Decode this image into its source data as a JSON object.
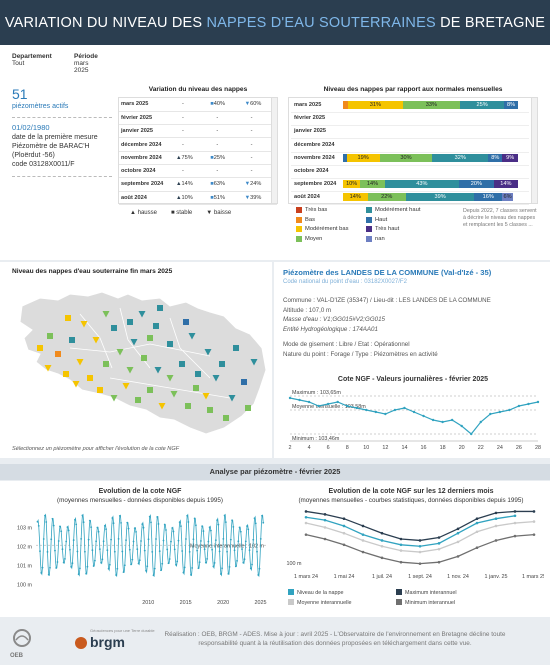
{
  "header": {
    "title_part1": "VARIATION DU NIVEAU DES ",
    "title_highlight": "NAPPES D'EAU SOUTERRAINES",
    "title_part2": " DE BRETAGNE"
  },
  "filters": {
    "dept_label": "Departement",
    "dept_value": "Tout",
    "period_label": "Période",
    "period_value": "mars 2025"
  },
  "kpi": {
    "count": "51",
    "count_label": "piézomètres actifs",
    "date": "01/02/1980",
    "date_label": "date de la première mesure",
    "piezo_name": "Piézomètre de BARAC'H",
    "piezo_place": "(Ploërdut -56)",
    "piezo_code": "code 03128X0011/F"
  },
  "variation": {
    "title": "Variation du niveau des nappes",
    "rows": [
      {
        "month": "mars 2025",
        "hausse": "-",
        "stable": "■40%",
        "baisse": "▼60%"
      },
      {
        "month": "février 2025",
        "hausse": "-",
        "stable": "-",
        "baisse": "-"
      },
      {
        "month": "janvier 2025",
        "hausse": "-",
        "stable": "-",
        "baisse": "-"
      },
      {
        "month": "décembre 2024",
        "hausse": "-",
        "stable": "-",
        "baisse": "-"
      },
      {
        "month": "novembre 2024",
        "hausse": "▲75%",
        "stable": "■25%",
        "baisse": "-"
      },
      {
        "month": "octobre 2024",
        "hausse": "-",
        "stable": "-",
        "baisse": "-"
      },
      {
        "month": "septembre 2024",
        "hausse": "▲14%",
        "stable": "■63%",
        "baisse": "▼24%"
      },
      {
        "month": "août 2024",
        "hausse": "▲10%",
        "stable": "■51%",
        "baisse": "▼39%"
      }
    ],
    "legend": {
      "hausse": "▲ hausse",
      "stable": "■ stable",
      "baisse": "▼ baisse"
    }
  },
  "normales": {
    "title": "Niveau des nappes par rapport aux normales mensuelles",
    "months": [
      "mars 2025",
      "février 2025",
      "janvier 2025",
      "décembre 2024",
      "novembre 2024",
      "octobre 2024",
      "septembre 2024",
      "août 2024"
    ],
    "legend": [
      {
        "label": "Très bas",
        "color": "#c9401e"
      },
      {
        "label": "Modérément haut",
        "color": "#2f8f9c"
      },
      {
        "label": "Bas",
        "color": "#f08a1c"
      },
      {
        "label": "Haut",
        "color": "#2f6fa8"
      },
      {
        "label": "Modérément bas",
        "color": "#f5c400"
      },
      {
        "label": "Très haut",
        "color": "#4a2e86"
      },
      {
        "label": "Moyen",
        "color": "#7cc05a"
      },
      {
        "label": "nan",
        "color": "#6d7fc2"
      }
    ],
    "note": "Depuis 2022, 7 classes servent à décrire le niveau des nappes et remplacent les 5 classes ..."
  },
  "map": {
    "title": "Niveau des nappes d'eau souterraine fin mars 2025",
    "caption": "Sélectionnez un piézomètre pour afficher l'évolution de la cote NGF"
  },
  "piezo": {
    "title": "Piézomètre des LANDES DE LA COMMUNE (Val-d'Izé - 35)",
    "code_nat": "Code national du point d'eau : 03182X0027/F2",
    "commune": "Commune : VAL-D'IZE (35347) / Lieu-dit : LES LANDES DE LA COMMUNE",
    "altitude": "Altitude : 107,0 m",
    "masse": "Masse d'eau : V1;GG015#V2;GG015",
    "entite": "Entité Hydrogéologique : 174AA01",
    "gisement": "Mode de gisement : Libre / Etat : Opérationnel",
    "nature": "Nature du point : Forage / Type : Piézomètres en activité"
  },
  "section_title": "Analyse par piézomètre - février 2025",
  "chart_data": [
    {
      "type": "line",
      "title": "Cote NGF - Valeurs journalières - février 2025",
      "x": [
        2,
        3,
        4,
        5,
        6,
        7,
        8,
        9,
        10,
        11,
        12,
        13,
        14,
        15,
        16,
        17,
        18,
        19,
        20,
        21,
        22,
        23,
        24,
        25,
        26,
        27,
        28
      ],
      "series": [
        {
          "values": [
            103.64,
            103.63,
            103.62,
            103.6,
            103.61,
            103.62,
            103.6,
            103.59,
            103.58,
            103.57,
            103.56,
            103.58,
            103.59,
            103.57,
            103.55,
            103.53,
            103.52,
            103.53,
            103.5,
            103.46,
            103.52,
            103.56,
            103.57,
            103.58,
            103.6,
            103.61,
            103.62
          ]
        }
      ],
      "xticks": [
        "2",
        "4",
        "6",
        "8",
        "10",
        "12",
        "14",
        "16",
        "18",
        "20",
        "22",
        "24",
        "26",
        "28"
      ],
      "annotations": {
        "max": "Maximum : 103,65m",
        "mean": "Moyenne mensuelle : 103,58m",
        "min": "Minimum : 103,46m"
      }
    },
    {
      "type": "line",
      "title": "Evolution de la cote NGF",
      "subtitle": "(moyennes mensuelles - données disponibles depuis 1995)",
      "x": [
        1995,
        2026
      ],
      "yticks": [
        "103 m",
        "102 m",
        "101 m",
        "100 m"
      ],
      "xticks": [
        "2010",
        "2015",
        "2020",
        "2025"
      ],
      "annotation": "Moyenne interannuelle : 102 m"
    },
    {
      "type": "line",
      "title": "Evolution de la cote NGF sur les 12 derniers mois",
      "subtitle": "(moyennes mensuelles - courbes statistiques, données disponibles depuis 1995)",
      "categories": [
        "mars 24",
        "avr. 24",
        "mai 24",
        "juin 24",
        "juil. 24",
        "août 24",
        "sept. 24",
        "oct. 24",
        "nov. 24",
        "déc. 24",
        "janv. 25",
        "févr. 25",
        "mars 25"
      ],
      "xticks": [
        "1 mars 24",
        "1 mai 24",
        "1 juil. 24",
        "1 sept. 24",
        "1 nov. 24",
        "1 janv. 25",
        "1 mars 25"
      ],
      "ytick": "100 m",
      "series": [
        {
          "name": "Niveau de la nappe",
          "color": "#31a3c0",
          "values": [
            103.5,
            103.3,
            102.9,
            102.3,
            101.9,
            101.6,
            101.5,
            101.7,
            102.4,
            103.1,
            103.4,
            103.6,
            null
          ]
        },
        {
          "name": "Maximum interannuel",
          "color": "#2b3e50",
          "values": [
            103.9,
            103.7,
            103.4,
            102.9,
            102.4,
            102.0,
            101.9,
            102.1,
            102.7,
            103.4,
            103.8,
            103.9,
            103.9
          ]
        },
        {
          "name": "Moyenne interannuelle",
          "color": "#c9c9c9",
          "values": [
            103.1,
            102.8,
            102.4,
            101.9,
            101.5,
            101.2,
            101.1,
            101.3,
            101.8,
            102.5,
            102.9,
            103.1,
            103.2
          ]
        },
        {
          "name": "Minimum interannuel",
          "color": "#6f6f6f",
          "values": [
            102.3,
            102.0,
            101.6,
            101.1,
            100.7,
            100.4,
            100.3,
            100.4,
            100.8,
            101.4,
            101.9,
            102.2,
            102.3
          ]
        }
      ]
    }
  ],
  "footer": {
    "text": "Réalisation : OEB, BRGM - ADES. Mise à jour : avril 2025 - L'Observatoire de l'environnement en Bretagne décline toute responsabilité quant à la réutilisation des données proposées en téléchargement dans cette vue.",
    "logo1": "OEB",
    "logo2": "brgm",
    "logo2_small": "Géosciences pour une Terre durable"
  }
}
